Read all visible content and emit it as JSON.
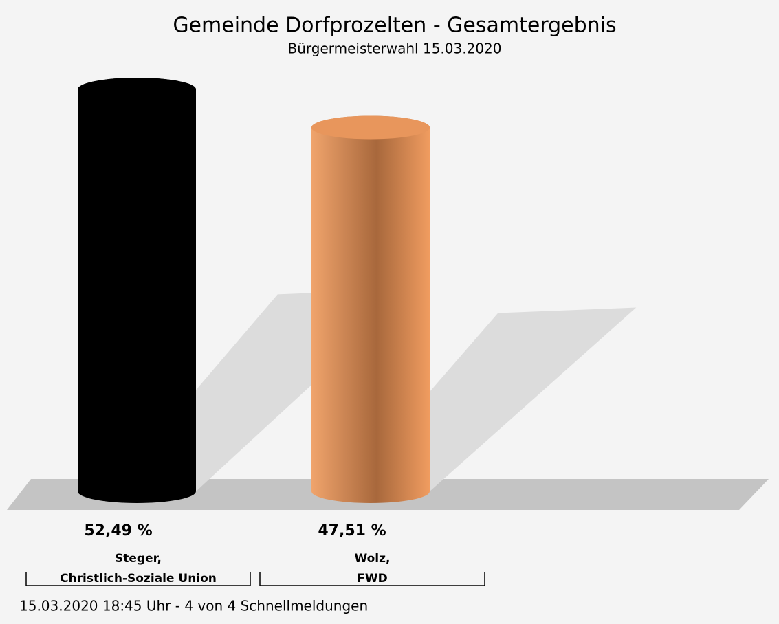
{
  "chart_data": {
    "type": "bar",
    "title": "Gemeinde Dorfprozelten - Gesamtergebnis",
    "subtitle": "Bürgermeisterwahl 15.03.2020",
    "categories": [
      [
        "Steger,",
        "Christlich-Soziale Union"
      ],
      [
        "Wolz,",
        "FWD"
      ]
    ],
    "values": [
      52.49,
      47.51
    ],
    "value_labels": [
      "52,49 %",
      "47,51 %"
    ],
    "colors": [
      "#000000",
      "#e8965c"
    ],
    "footer": "15.03.2020 18:45 Uhr - 4 von 4 Schnellmeldungen"
  }
}
